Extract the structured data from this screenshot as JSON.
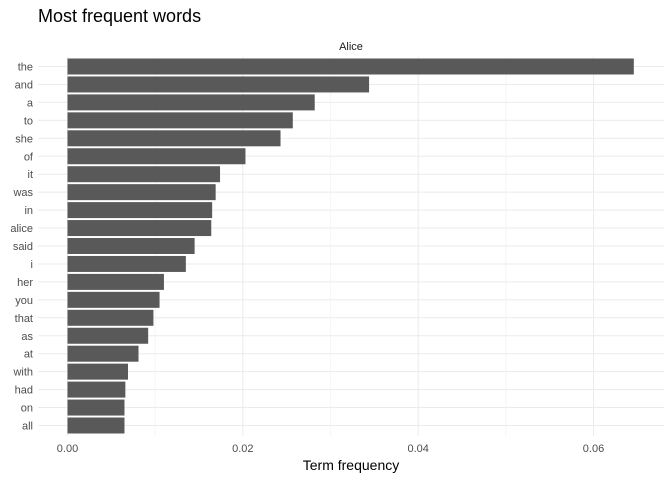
{
  "chart_data": {
    "type": "bar",
    "orientation": "horizontal",
    "title": "Most frequent words",
    "facet_label": "Alice",
    "xlabel": "Term frequency",
    "ylabel": "",
    "xlim": [
      0,
      0.0675
    ],
    "x_ticks": [
      0.0,
      0.02,
      0.04,
      0.06
    ],
    "x_tick_labels": [
      "0.00",
      "0.02",
      "0.04",
      "0.06"
    ],
    "grid": true,
    "legend": "none",
    "bar_color": "#595959",
    "categories": [
      "the",
      "and",
      "a",
      "to",
      "she",
      "of",
      "it",
      "was",
      "in",
      "alice",
      "said",
      "i",
      "her",
      "you",
      "that",
      "as",
      "at",
      "with",
      "had",
      "on",
      "all"
    ],
    "values": [
      0.0646,
      0.0344,
      0.0282,
      0.0257,
      0.0243,
      0.0203,
      0.0174,
      0.0169,
      0.0165,
      0.0164,
      0.0145,
      0.0135,
      0.011,
      0.0105,
      0.0098,
      0.0092,
      0.0081,
      0.0069,
      0.0066,
      0.0065,
      0.0065
    ]
  }
}
